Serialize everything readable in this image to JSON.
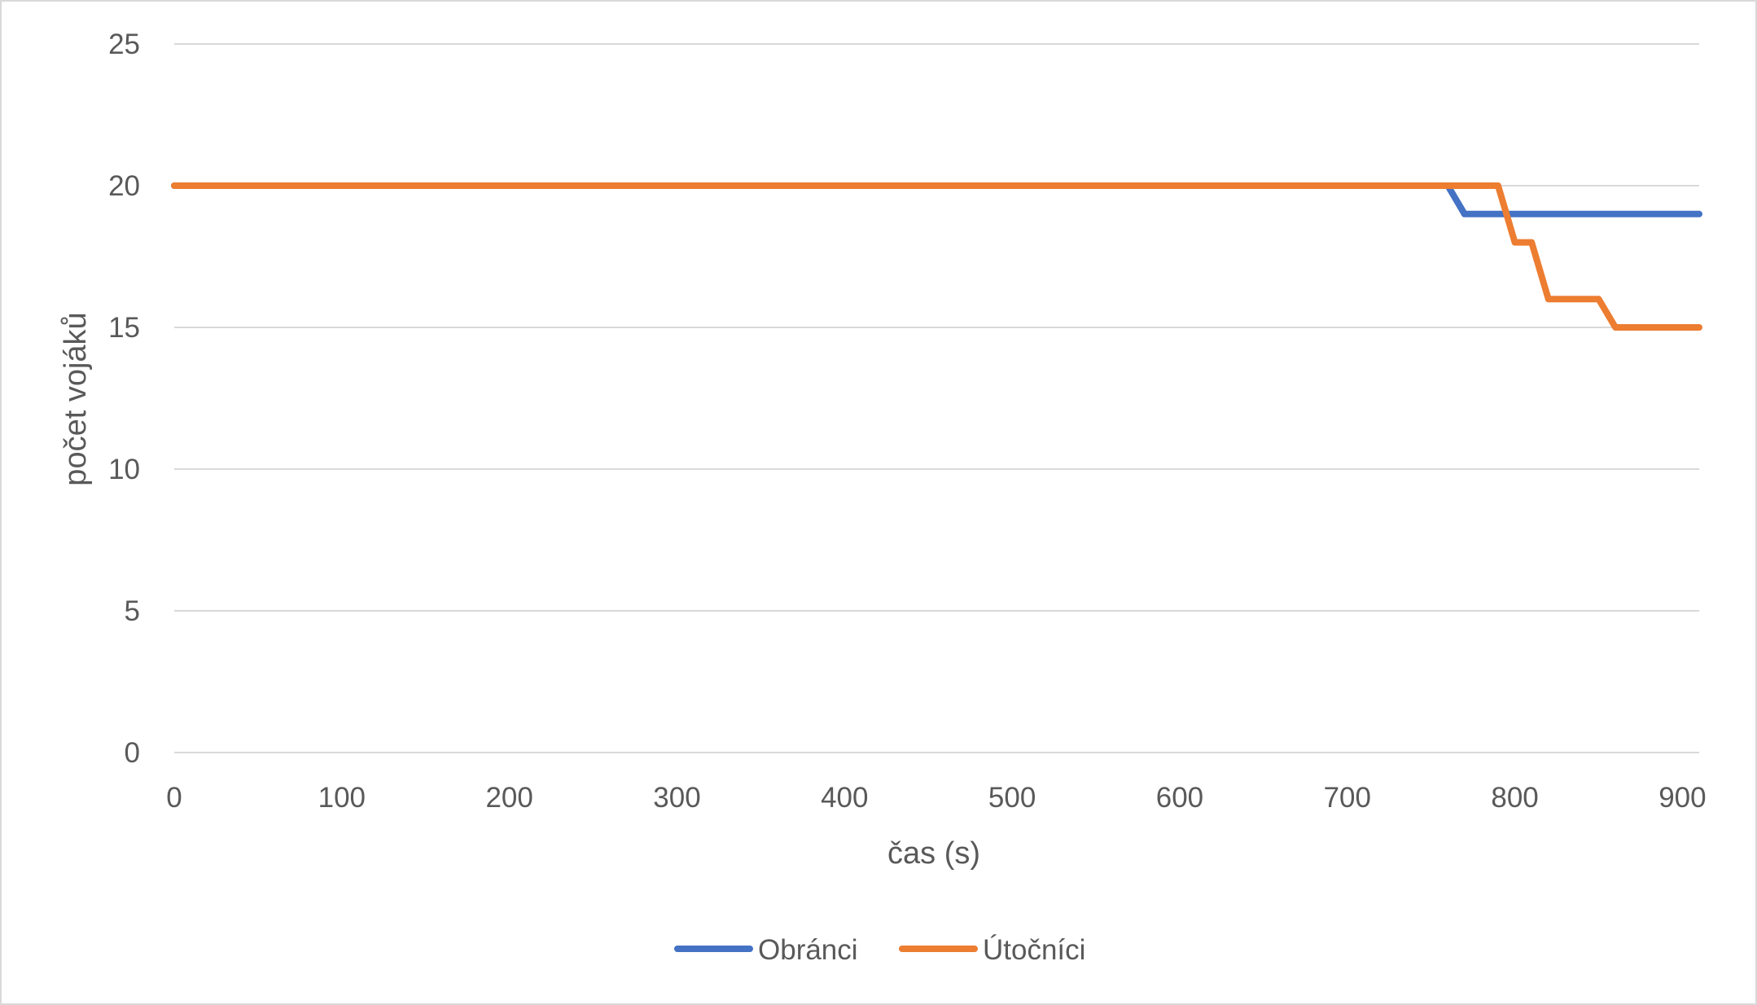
{
  "chart_data": {
    "type": "line",
    "title": "",
    "xlabel": "čas (s)",
    "ylabel": "počet vojáků",
    "xlim": [
      0,
      910
    ],
    "ylim": [
      0,
      25
    ],
    "xticks": [
      0,
      100,
      200,
      300,
      400,
      500,
      600,
      700,
      800,
      900
    ],
    "yticks": [
      0,
      5,
      10,
      15,
      20,
      25
    ],
    "grid": "horizontal",
    "legend_position": "bottom",
    "series": [
      {
        "name": "Obránci",
        "color": "#4472C4",
        "x": [
          0,
          760,
          770,
          910
        ],
        "y": [
          20,
          20,
          19,
          19
        ]
      },
      {
        "name": "Útočníci",
        "color": "#ED7D31",
        "x": [
          0,
          790,
          800,
          810,
          820,
          850,
          860,
          910
        ],
        "y": [
          20,
          20,
          18,
          18,
          16,
          16,
          15,
          15
        ]
      }
    ]
  }
}
